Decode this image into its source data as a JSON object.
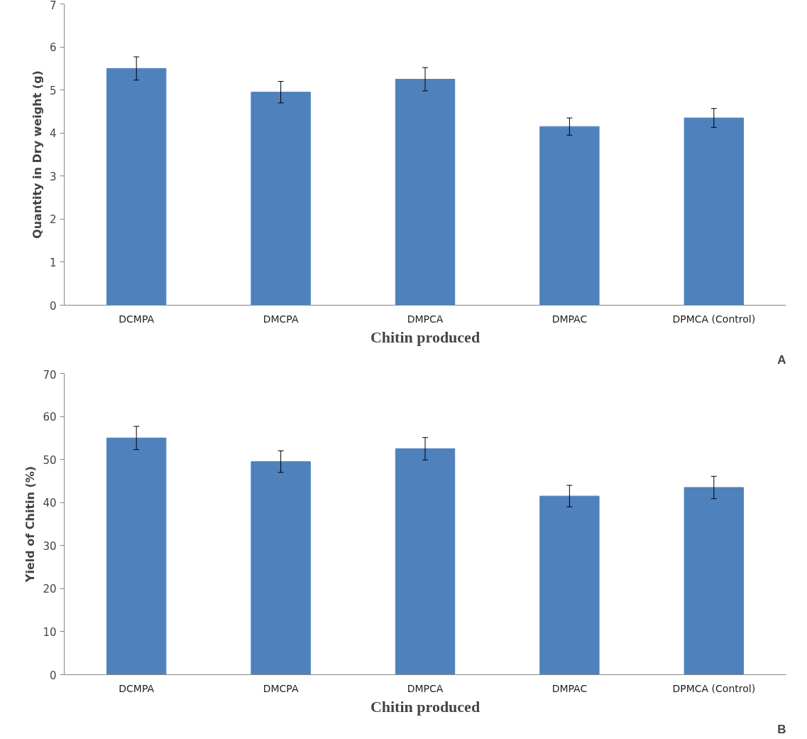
{
  "chart_data": [
    {
      "type": "bar",
      "xlabel": "Chitin produced",
      "ylabel": "Quantity in Dry weight (g)",
      "categories": [
        "DCMPA",
        "DMCPA",
        "DMPCA",
        "DMPAC",
        "DPMCA (Control)"
      ],
      "values": [
        5.5,
        4.95,
        5.25,
        4.15,
        4.35
      ],
      "errors": [
        0.27,
        0.25,
        0.27,
        0.2,
        0.22
      ],
      "color": "#4f81bd",
      "ylim": [
        0,
        7
      ],
      "yticks": [
        0,
        1,
        2,
        3,
        4,
        5,
        6,
        7
      ],
      "grid": false,
      "annotations": [
        "A"
      ]
    },
    {
      "type": "bar",
      "xlabel": "Chitin produced",
      "ylabel": "Yield of Chitin (%)",
      "categories": [
        "DCMPA",
        "DMCPA",
        "DMPCA",
        "DMPAC",
        "DPMCA (Control)"
      ],
      "values": [
        55,
        49.5,
        52.5,
        41.5,
        43.5
      ],
      "errors": [
        2.7,
        2.5,
        2.6,
        2.5,
        2.6
      ],
      "color": "#4f81bd",
      "ylim": [
        0,
        70
      ],
      "yticks": [
        0,
        10,
        20,
        30,
        40,
        50,
        60,
        70
      ],
      "grid": false,
      "annotations": [
        "B"
      ]
    }
  ]
}
